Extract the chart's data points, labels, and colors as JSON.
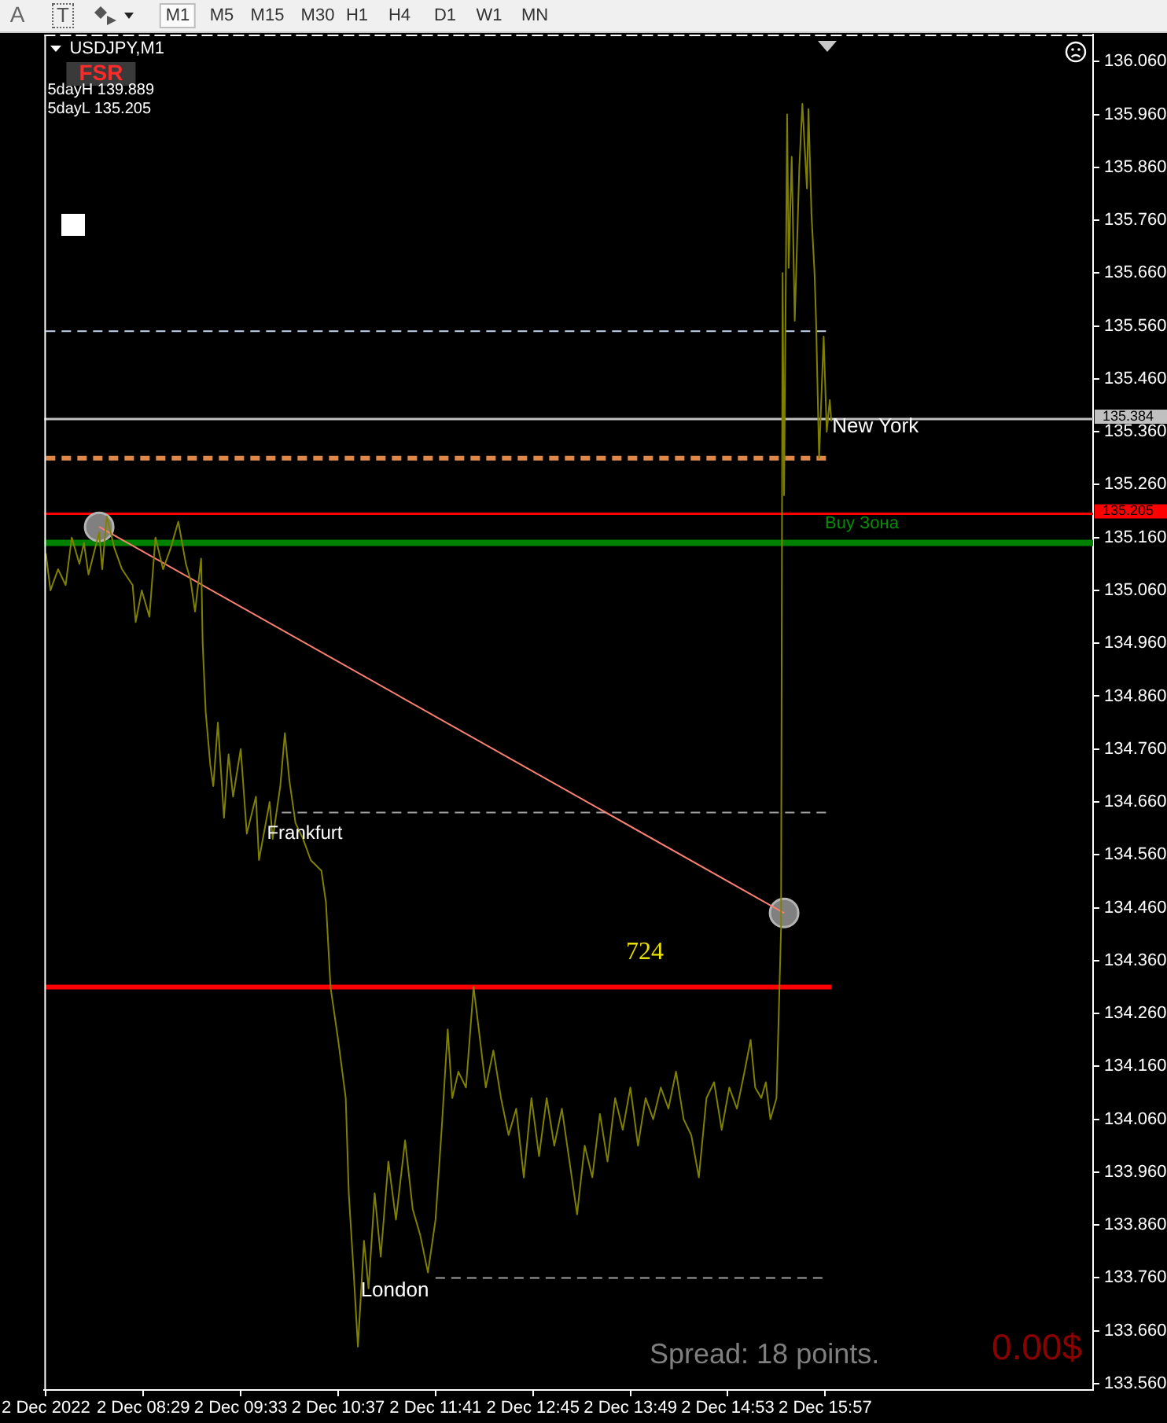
{
  "chart_data": {
    "type": "line",
    "title": "USDJPY,M1",
    "x": [
      "2022-12-02T07:25",
      "2022-12-02T07:28",
      "2022-12-02T07:33",
      "2022-12-02T07:38",
      "2022-12-02T07:42",
      "2022-12-02T07:47",
      "2022-12-02T07:50",
      "2022-12-02T07:53",
      "2022-12-02T08:00",
      "2022-12-02T08:02",
      "2022-12-02T08:05",
      "2022-12-02T08:10",
      "2022-12-02T08:15",
      "2022-12-02T08:22",
      "2022-12-02T08:24",
      "2022-12-02T08:28",
      "2022-12-02T08:33",
      "2022-12-02T08:37",
      "2022-12-02T08:42",
      "2022-12-02T08:47",
      "2022-12-02T08:52",
      "2022-12-02T08:57",
      "2022-12-02T09:00",
      "2022-12-02T09:03",
      "2022-12-02T09:07",
      "2022-12-02T09:08",
      "2022-12-02T09:10",
      "2022-12-02T09:13",
      "2022-12-02T09:15",
      "2022-12-02T09:18",
      "2022-12-02T09:22",
      "2022-12-02T09:25",
      "2022-12-02T09:28",
      "2022-12-02T09:33",
      "2022-12-02T09:37",
      "2022-12-02T09:43",
      "2022-12-02T09:45",
      "2022-12-02T09:52",
      "2022-12-02T09:54",
      "2022-12-02T09:59",
      "2022-12-02T10:02",
      "2022-12-02T10:05",
      "2022-12-02T10:09",
      "2022-12-02T10:14",
      "2022-12-02T10:19",
      "2022-12-02T10:26",
      "2022-12-02T10:29",
      "2022-12-02T10:32",
      "2022-12-02T10:37",
      "2022-12-02T10:42",
      "2022-12-02T10:44",
      "2022-12-02T10:47",
      "2022-12-02T10:50",
      "2022-12-02T10:54",
      "2022-12-02T10:57",
      "2022-12-02T11:01",
      "2022-12-02T11:05",
      "2022-12-02T11:10",
      "2022-12-02T11:15",
      "2022-12-02T11:21",
      "2022-12-02T11:26",
      "2022-12-02T11:31",
      "2022-12-02T11:36",
      "2022-12-02T11:41",
      "2022-12-02T11:45",
      "2022-12-02T11:49",
      "2022-12-02T11:52",
      "2022-12-02T11:56",
      "2022-12-02T12:01",
      "2022-12-02T12:06",
      "2022-12-02T12:09",
      "2022-12-02T12:14",
      "2022-12-02T12:19",
      "2022-12-02T12:24",
      "2022-12-02T12:29",
      "2022-12-02T12:34",
      "2022-12-02T12:39",
      "2022-12-02T12:44",
      "2022-12-02T12:49",
      "2022-12-02T12:54",
      "2022-12-02T12:59",
      "2022-12-02T13:04",
      "2022-12-02T13:09",
      "2022-12-02T13:14",
      "2022-12-02T13:19",
      "2022-12-02T13:24",
      "2022-12-02T13:29",
      "2022-12-02T13:34",
      "2022-12-02T13:39",
      "2022-12-02T13:44",
      "2022-12-02T13:49",
      "2022-12-02T13:54",
      "2022-12-02T13:59",
      "2022-12-02T14:04",
      "2022-12-02T14:09",
      "2022-12-02T14:14",
      "2022-12-02T14:19",
      "2022-12-02T14:24",
      "2022-12-02T14:29",
      "2022-12-02T14:34",
      "2022-12-02T14:39",
      "2022-12-02T14:44",
      "2022-12-02T14:49",
      "2022-12-02T14:54",
      "2022-12-02T14:59",
      "2022-12-02T15:04",
      "2022-12-02T15:08",
      "2022-12-02T15:11",
      "2022-12-02T15:15",
      "2022-12-02T15:18",
      "2022-12-02T15:21",
      "2022-12-02T15:25",
      "2022-12-02T15:28",
      "2022-12-02T15:29",
      "2022-12-02T15:30",
      "2022-12-02T15:32",
      "2022-12-02T15:33",
      "2022-12-02T15:35",
      "2022-12-02T15:37",
      "2022-12-02T15:40",
      "2022-12-02T15:42",
      "2022-12-02T15:45",
      "2022-12-02T15:46",
      "2022-12-02T15:48",
      "2022-12-02T15:50",
      "2022-12-02T15:51",
      "2022-12-02T15:53",
      "2022-12-02T15:56",
      "2022-12-02T15:58",
      "2022-12-02T16:00",
      "2022-12-02T16:01"
    ],
    "series": [
      {
        "color": "#808000",
        "values": [
          135.13,
          135.06,
          135.1,
          135.07,
          135.16,
          135.11,
          135.15,
          135.09,
          135.17,
          135.1,
          135.2,
          135.14,
          135.1,
          135.07,
          135.0,
          135.06,
          135.01,
          135.16,
          135.1,
          135.14,
          135.19,
          135.11,
          135.08,
          135.02,
          135.12,
          134.96,
          134.83,
          134.73,
          134.69,
          134.81,
          134.63,
          134.75,
          134.67,
          134.76,
          134.6,
          134.67,
          134.55,
          134.66,
          134.59,
          134.69,
          134.79,
          134.7,
          134.62,
          134.59,
          134.55,
          134.53,
          134.47,
          134.31,
          134.21,
          134.1,
          133.92,
          133.78,
          133.63,
          133.83,
          133.74,
          133.92,
          133.8,
          133.98,
          133.87,
          134.02,
          133.89,
          133.84,
          133.77,
          133.87,
          134.04,
          134.23,
          134.1,
          134.15,
          134.12,
          134.31,
          134.24,
          134.12,
          134.19,
          134.1,
          134.03,
          134.08,
          133.95,
          134.1,
          133.99,
          134.1,
          134.01,
          134.08,
          133.98,
          133.88,
          134.01,
          133.95,
          134.07,
          133.98,
          134.1,
          134.04,
          134.12,
          134.01,
          134.1,
          134.06,
          134.12,
          134.08,
          134.15,
          134.06,
          134.03,
          133.95,
          134.1,
          134.13,
          134.04,
          134.12,
          134.08,
          134.15,
          134.21,
          134.12,
          134.1,
          134.13,
          134.06,
          134.1,
          134.42,
          135.66,
          135.24,
          135.96,
          135.67,
          135.88,
          135.57,
          135.86,
          135.98,
          135.82,
          135.97,
          135.77,
          135.66,
          135.57,
          135.31,
          135.54,
          135.36,
          135.42,
          135.38
        ]
      },
      {
        "color": "#fa8072",
        "x": [
          "2022-12-02T08:00",
          "2022-12-02T15:30"
        ],
        "values": [
          135.18,
          134.45
        ]
      },
      {
        "type": "scatter",
        "color": "#808080",
        "marker": "circle",
        "x": [
          "2022-12-02T08:00",
          "2022-12-02T15:30"
        ],
        "values": [
          135.18,
          134.45
        ]
      },
      {
        "color": "#ff0000",
        "x": [
          "2022-12-02T07:25",
          "2022-12-02T16:01"
        ],
        "values": [
          134.31,
          134.31
        ]
      },
      {
        "color": "#c8d8f0",
        "line_style": "dashed",
        "x": [
          "2022-12-02T07:25",
          "2022-12-02T15:58"
        ],
        "values": [
          135.55,
          135.55
        ]
      },
      {
        "color": "#e0874a",
        "line_style": "dashed",
        "x": [
          "2022-12-02T07:25",
          "2022-12-02T16:01"
        ],
        "values": [
          135.31,
          135.31
        ]
      },
      {
        "color": "#a0a0a0",
        "line_style": "dashed",
        "x": [
          "2022-12-02T10:00",
          "2022-12-02T16:01"
        ],
        "values": [
          134.64,
          134.64
        ]
      },
      {
        "color": "#a0a0a0",
        "line_style": "dashed",
        "x": [
          "2022-12-02T11:41",
          "2022-12-02T15:56"
        ],
        "values": [
          133.76,
          133.76
        ]
      }
    ],
    "xlim": [
      "2022-12-02T07:24",
      "2022-12-02T18:53"
    ],
    "xticks": [
      {
        "value": "2022-12-02T07:25",
        "label": "2 Dec 2022"
      },
      {
        "value": "2022-12-02T08:29",
        "label": "2 Dec 08:29"
      },
      {
        "value": "2022-12-02T09:33",
        "label": "2 Dec 09:33"
      },
      {
        "value": "2022-12-02T10:37",
        "label": "2 Dec 10:37"
      },
      {
        "value": "2022-12-02T11:41",
        "label": "2 Dec 11:41"
      },
      {
        "value": "2022-12-02T12:45",
        "label": "2 Dec 12:45"
      },
      {
        "value": "2022-12-02T13:49",
        "label": "2 Dec 13:49"
      },
      {
        "value": "2022-12-02T14:53",
        "label": "2 Dec 14:53"
      },
      {
        "value": "2022-12-02T15:57",
        "label": "2 Dec 15:57"
      }
    ],
    "ylim": [
      133.548,
      136.111
    ],
    "yticks": [
      {
        "value": 133.56,
        "label": "133.560"
      },
      {
        "value": 133.66,
        "label": "133.660"
      },
      {
        "value": 133.76,
        "label": "133.760"
      },
      {
        "value": 133.86,
        "label": "133.860"
      },
      {
        "value": 133.96,
        "label": "133.960"
      },
      {
        "value": 134.06,
        "label": "134.060"
      },
      {
        "value": 134.16,
        "label": "134.160"
      },
      {
        "value": 134.26,
        "label": "134.260"
      },
      {
        "value": 134.36,
        "label": "134.360"
      },
      {
        "value": 134.46,
        "label": "134.460"
      },
      {
        "value": 134.56,
        "label": "134.560"
      },
      {
        "value": 134.66,
        "label": "134.660"
      },
      {
        "value": 134.76,
        "label": "134.760"
      },
      {
        "value": 134.86,
        "label": "134.860"
      },
      {
        "value": 134.96,
        "label": "134.960"
      },
      {
        "value": 135.06,
        "label": "135.060"
      },
      {
        "value": 135.16,
        "label": "135.160"
      },
      {
        "value": 135.26,
        "label": "135.260"
      },
      {
        "value": 135.36,
        "label": "135.360"
      },
      {
        "value": 135.46,
        "label": "135.460"
      },
      {
        "value": 135.56,
        "label": "135.560"
      },
      {
        "value": 135.66,
        "label": "135.660"
      },
      {
        "value": 135.76,
        "label": "135.760"
      },
      {
        "value": 135.86,
        "label": "135.860"
      },
      {
        "value": 135.96,
        "label": "135.960"
      },
      {
        "value": 136.06,
        "label": "136.060"
      }
    ],
    "ref_lines": [
      {
        "axis": "y",
        "value": 135.384,
        "label": "135.384",
        "color": "#c0c0c0"
      },
      {
        "axis": "y",
        "value": 135.205,
        "label": "135.205",
        "color": "#ff0000"
      },
      {
        "axis": "y",
        "value": 135.15,
        "color": "#008000"
      }
    ],
    "annotations": [
      "A",
      "T",
      "M1",
      "M5",
      "M15",
      "M30",
      "H1",
      "H4",
      "D1",
      "W1",
      "MN",
      "FSR",
      "5dayH 139.889",
      "5dayL 135.205",
      "Spread: 18 points.",
      "0.00$",
      "Buy Зона",
      "London",
      "724",
      {
        "text": "New York",
        "x": "2022-12-02T16:30",
        "y": 135.37
      },
      {
        "text": "Frankfurt",
        "x": "2022-12-02T10:15",
        "y": 134.6
      }
    ],
    "grid": false,
    "legend": false,
    "marker": "none",
    "line_style": "solid"
  }
}
